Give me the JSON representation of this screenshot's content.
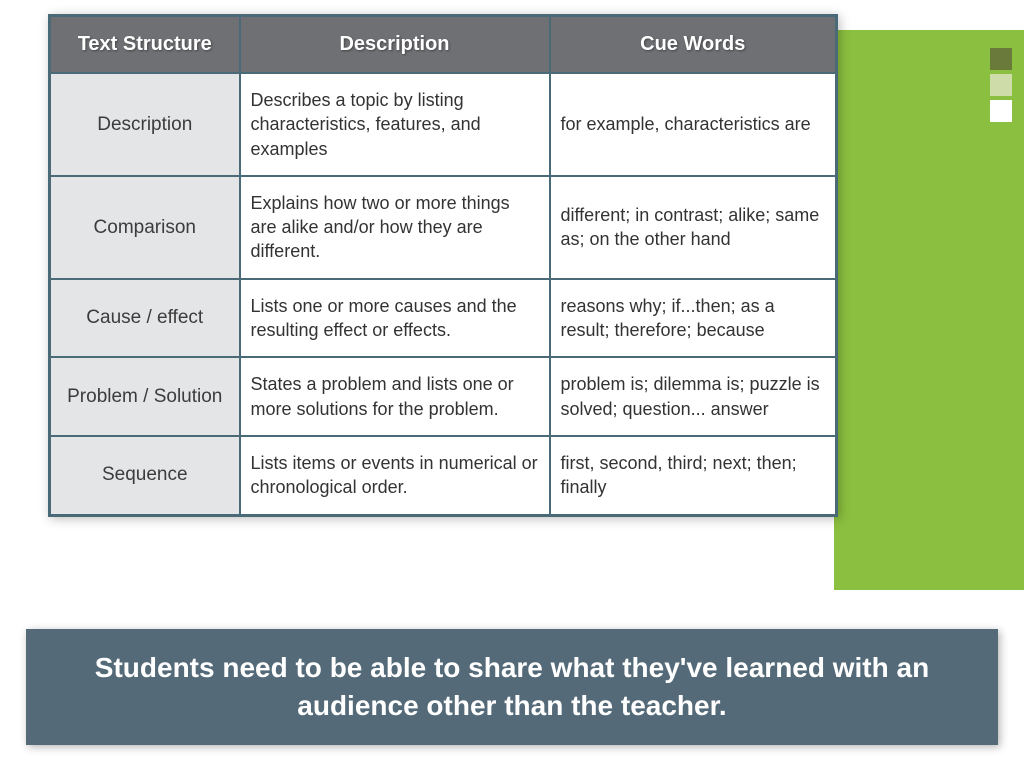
{
  "colors": {
    "green_panel": "#8bbf3f",
    "header_bg": "#6f7073",
    "header_text": "#ffffff",
    "border": "#4a6a78",
    "col1_bg": "#e4e5e7",
    "cell_bg": "#ffffff",
    "caption_bg": "#546a78",
    "caption_text": "#ffffff",
    "sq1": "#6a7a3a",
    "sq2": "#cddca8",
    "sq3": "#ffffff"
  },
  "table": {
    "headers": [
      "Text Structure",
      "Description",
      "Cue Words"
    ],
    "rows": [
      {
        "structure": "Description",
        "description": "Describes a topic by listing characteristics, features, and examples",
        "cue": "for example, characteristics are"
      },
      {
        "structure": "Comparison",
        "description": "Explains how two or more things are alike and/or how they are different.",
        "cue": "different; in contrast; alike; same as; on the other hand"
      },
      {
        "structure": "Cause / effect",
        "description": "Lists one or more causes and the resulting effect or effects.",
        "cue": "reasons why; if...then; as a result; therefore; because"
      },
      {
        "structure": "Problem  / Solution",
        "description": "States a problem and lists one or more solutions for the problem.",
        "cue": "problem is; dilemma is; puzzle is solved; question... answer"
      },
      {
        "structure": "Sequence",
        "description": "Lists items or events in numerical or chronological order.",
        "cue": "first, second, third; next; then; finally"
      }
    ]
  },
  "caption": "Students need to be able to share what they've learned with an audience other than the teacher."
}
